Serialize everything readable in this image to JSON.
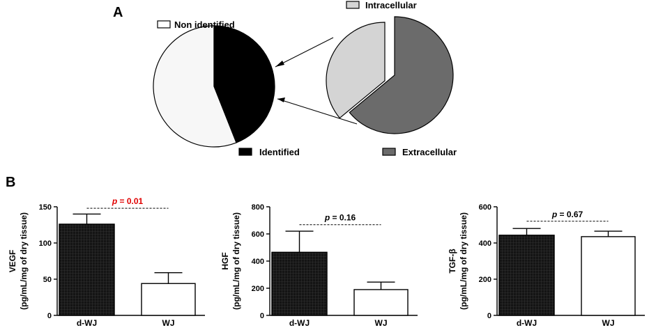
{
  "panels": {
    "a": "A",
    "b": "B"
  },
  "chart_data": [
    {
      "type": "pie",
      "title": "",
      "labels": [
        "Non identified",
        "Identified"
      ],
      "values": [
        56,
        44
      ],
      "colors": [
        "#f7f7f7",
        "#000000"
      ]
    },
    {
      "type": "pie",
      "title": "",
      "labels": [
        "Intracellular",
        "Extracellular"
      ],
      "values": [
        36,
        64
      ],
      "colors": [
        "#d4d4d4",
        "#6b6b6b"
      ]
    },
    {
      "type": "bar",
      "categories": [
        "d-WJ",
        "WJ"
      ],
      "values": [
        126,
        44
      ],
      "errors": [
        14,
        15
      ],
      "ylabel_main": "VEGF",
      "ylabel_unit": "(pg/mL/mg of dry tissue)",
      "ylim": [
        0,
        150
      ],
      "yticks": [
        0,
        50,
        100,
        150
      ],
      "p_prefix": "p",
      "p_suffix": " = 0.01",
      "p_color": "#e00000"
    },
    {
      "type": "bar",
      "categories": [
        "d-WJ",
        "WJ"
      ],
      "values": [
        465,
        190
      ],
      "errors": [
        155,
        55
      ],
      "ylabel_main": "HGF",
      "ylabel_unit": "(pg/mL/mg of dry tissue)",
      "ylim": [
        0,
        800
      ],
      "yticks": [
        0,
        200,
        400,
        600,
        800
      ],
      "p_prefix": "p",
      "p_suffix": " = 0.16",
      "p_color": "#000000"
    },
    {
      "type": "bar",
      "categories": [
        "d-WJ",
        "WJ"
      ],
      "values": [
        443,
        435
      ],
      "errors": [
        37,
        30
      ],
      "ylabel_main": "TGF-β",
      "ylabel_unit": "(pg/mL/mg of dry tissue)",
      "ylim": [
        0,
        600
      ],
      "yticks": [
        0,
        200,
        400,
        600
      ],
      "p_prefix": "p",
      "p_suffix": " = 0.67",
      "p_color": "#000000"
    }
  ]
}
